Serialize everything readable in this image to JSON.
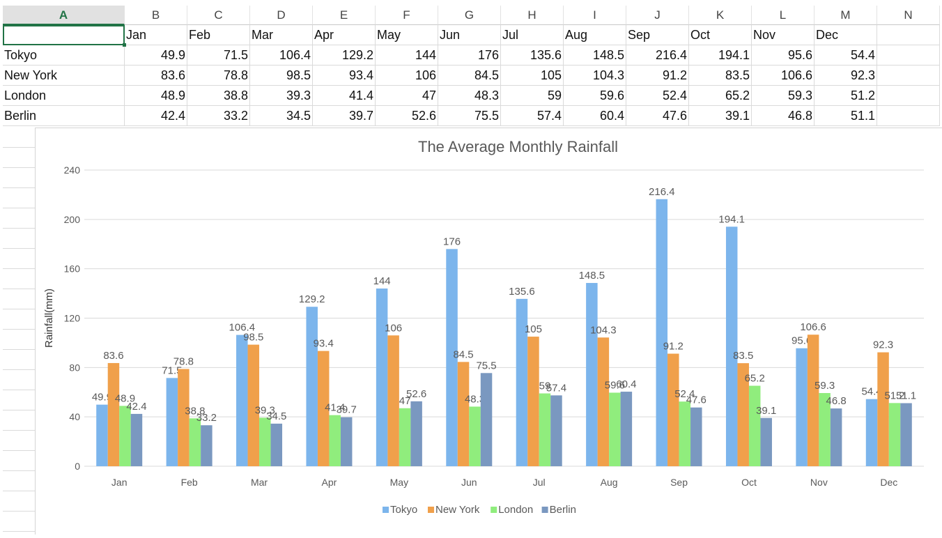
{
  "sheet": {
    "columns": [
      "A",
      "B",
      "C",
      "D",
      "E",
      "F",
      "G",
      "H",
      "I",
      "J",
      "K",
      "L",
      "M",
      "N"
    ],
    "selected_column": "A",
    "header_row": [
      "",
      "Jan",
      "Feb",
      "Mar",
      "Apr",
      "May",
      "Jun",
      "Jul",
      "Aug",
      "Sep",
      "Oct",
      "Nov",
      "Dec"
    ],
    "rows": [
      {
        "label": "Tokyo",
        "values": [
          "49.9",
          "71.5",
          "106.4",
          "129.2",
          "144",
          "176",
          "135.6",
          "148.5",
          "216.4",
          "194.1",
          "95.6",
          "54.4"
        ]
      },
      {
        "label": "New York",
        "values": [
          "83.6",
          "78.8",
          "98.5",
          "93.4",
          "106",
          "84.5",
          "105",
          "104.3",
          "91.2",
          "83.5",
          "106.6",
          "92.3"
        ]
      },
      {
        "label": "London",
        "values": [
          "48.9",
          "38.8",
          "39.3",
          "41.4",
          "47",
          "48.3",
          "59",
          "59.6",
          "52.4",
          "65.2",
          "59.3",
          "51.2"
        ]
      },
      {
        "label": "Berlin",
        "values": [
          "42.4",
          "33.2",
          "34.5",
          "39.7",
          "52.6",
          "75.5",
          "57.4",
          "60.4",
          "47.6",
          "39.1",
          "46.8",
          "51.1"
        ]
      }
    ]
  },
  "chart_data": {
    "type": "bar",
    "title": "The Average Monthly Rainfall",
    "xlabel": "",
    "ylabel": "Rainfall(mm)",
    "ylim": [
      0,
      240
    ],
    "yticks": [
      "0",
      "40",
      "80",
      "120",
      "160",
      "200",
      "240"
    ],
    "categories": [
      "Jan",
      "Feb",
      "Mar",
      "Apr",
      "May",
      "Jun",
      "Jul",
      "Aug",
      "Sep",
      "Oct",
      "Nov",
      "Dec"
    ],
    "grid": true,
    "legend_position": "bottom",
    "series": [
      {
        "name": "Tokyo",
        "color": "#7cb5ec",
        "values": [
          49.9,
          71.5,
          106.4,
          129.2,
          144,
          176,
          135.6,
          148.5,
          216.4,
          194.1,
          95.6,
          54.4
        ]
      },
      {
        "name": "New York",
        "color": "#f0a04b",
        "values": [
          83.6,
          78.8,
          98.5,
          93.4,
          106,
          84.5,
          105,
          104.3,
          91.2,
          83.5,
          106.6,
          92.3
        ]
      },
      {
        "name": "London",
        "color": "#90ed7d",
        "values": [
          48.9,
          38.8,
          39.3,
          41.4,
          47,
          48.3,
          59,
          59.6,
          52.4,
          65.2,
          59.3,
          51.2
        ]
      },
      {
        "name": "Berlin",
        "color": "#7a98c0",
        "values": [
          42.4,
          33.2,
          34.5,
          39.7,
          52.6,
          75.5,
          57.4,
          60.4,
          47.6,
          39.1,
          46.8,
          51.1
        ]
      }
    ]
  }
}
